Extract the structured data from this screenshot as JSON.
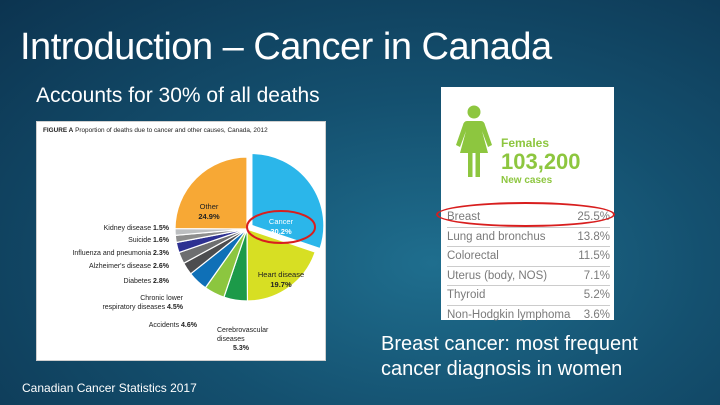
{
  "slide": {
    "title": "Introduction – Cancer in Canada",
    "subtitle": "Accounts for 30% of all deaths",
    "source": "Canadian Cancer Statistics 2017",
    "takeaway_line1": "Breast cancer: most frequent",
    "takeaway_line2": "cancer diagnosis in women"
  },
  "figure": {
    "caption_label": "FIGURE A",
    "caption_text": "Proportion of deaths due to cancer and other causes, Canada, 2012"
  },
  "chart_data": {
    "type": "pie",
    "title": "Proportion of deaths due to cancer and other causes, Canada, 2012",
    "slices": [
      {
        "label": "Cancer",
        "value": 30.2,
        "display": "30.2%",
        "color": "#2bb6ea"
      },
      {
        "label": "Heart disease",
        "value": 19.7,
        "display": "19.7%",
        "color": "#d7df23"
      },
      {
        "label": "Cerebrovascular diseases",
        "value": 5.3,
        "display": "5.3%",
        "color": "#1c9a49"
      },
      {
        "label": "Accidents",
        "value": 4.6,
        "display": "4.6%",
        "color": "#8cc63f"
      },
      {
        "label": "Chronic lower respiratory diseases",
        "value": 4.5,
        "display": "4.5%",
        "color": "#0f70b7"
      },
      {
        "label": "Diabetes",
        "value": 2.8,
        "display": "2.8%",
        "color": "#4d4d4f"
      },
      {
        "label": "Alzheimer's disease",
        "value": 2.6,
        "display": "2.6%",
        "color": "#6d6e70"
      },
      {
        "label": "Influenza and pneumonia",
        "value": 2.3,
        "display": "2.3%",
        "color": "#2e3192"
      },
      {
        "label": "Suicide",
        "value": 1.6,
        "display": "1.6%",
        "color": "#8d8d8d"
      },
      {
        "label": "Kidney disease",
        "value": 1.5,
        "display": "1.5%",
        "color": "#bcbec0"
      },
      {
        "label": "Other",
        "value": 24.9,
        "display": "24.9%",
        "color": "#f7a835"
      }
    ],
    "highlight": "Cancer",
    "highlight_color": "#d81e1e"
  },
  "incidence": {
    "group_label": "Females",
    "count": "103,200",
    "sub_label": "New cases",
    "accent_color": "#8dc63f",
    "rows": [
      {
        "site": "Breast",
        "pct": "25.5%"
      },
      {
        "site": "Lung and bronchus",
        "pct": "13.8%"
      },
      {
        "site": "Colorectal",
        "pct": "11.5%"
      },
      {
        "site": "Uterus (body, NOS)",
        "pct": "7.1%"
      },
      {
        "site": "Thyroid",
        "pct": "5.2%"
      },
      {
        "site": "Non-Hodgkin lymphoma",
        "pct": "3.6%"
      }
    ]
  }
}
